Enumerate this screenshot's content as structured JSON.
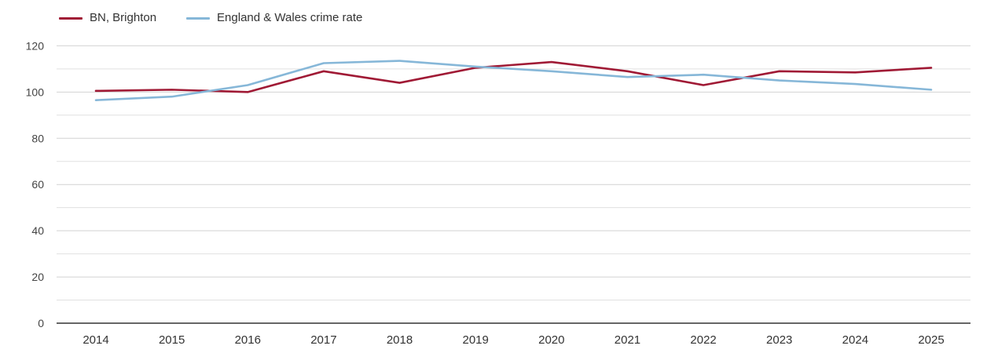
{
  "chart_data": {
    "type": "line",
    "title": "",
    "xlabel": "",
    "ylabel": "",
    "categories": [
      "2014",
      "2015",
      "2016",
      "2017",
      "2018",
      "2019",
      "2020",
      "2021",
      "2022",
      "2023",
      "2024",
      "2025"
    ],
    "series": [
      {
        "name": "BN, Brighton",
        "color": "#a01a35",
        "values": [
          100.5,
          101,
          100,
          109,
          104,
          110.5,
          113,
          109,
          103,
          109,
          108.5,
          110.5
        ]
      },
      {
        "name": "England & Wales crime rate",
        "color": "#86b7d8",
        "values": [
          96.5,
          98,
          103,
          112.5,
          113.5,
          111,
          109,
          106.5,
          107.5,
          105,
          103.5,
          101
        ]
      }
    ],
    "ylim": [
      0,
      120
    ],
    "y_major_ticks": [
      0,
      20,
      40,
      60,
      80,
      100,
      120
    ],
    "y_minor_gridlines": [
      10,
      30,
      50,
      70,
      90,
      110
    ],
    "grid": true,
    "legend_position": "top-left"
  },
  "colors": {
    "major_gridline": "#d2d2d2",
    "minor_gridline": "#e0e0e0",
    "axis_line": "#333333",
    "y_label": "#444444",
    "x_label": "#333333"
  }
}
